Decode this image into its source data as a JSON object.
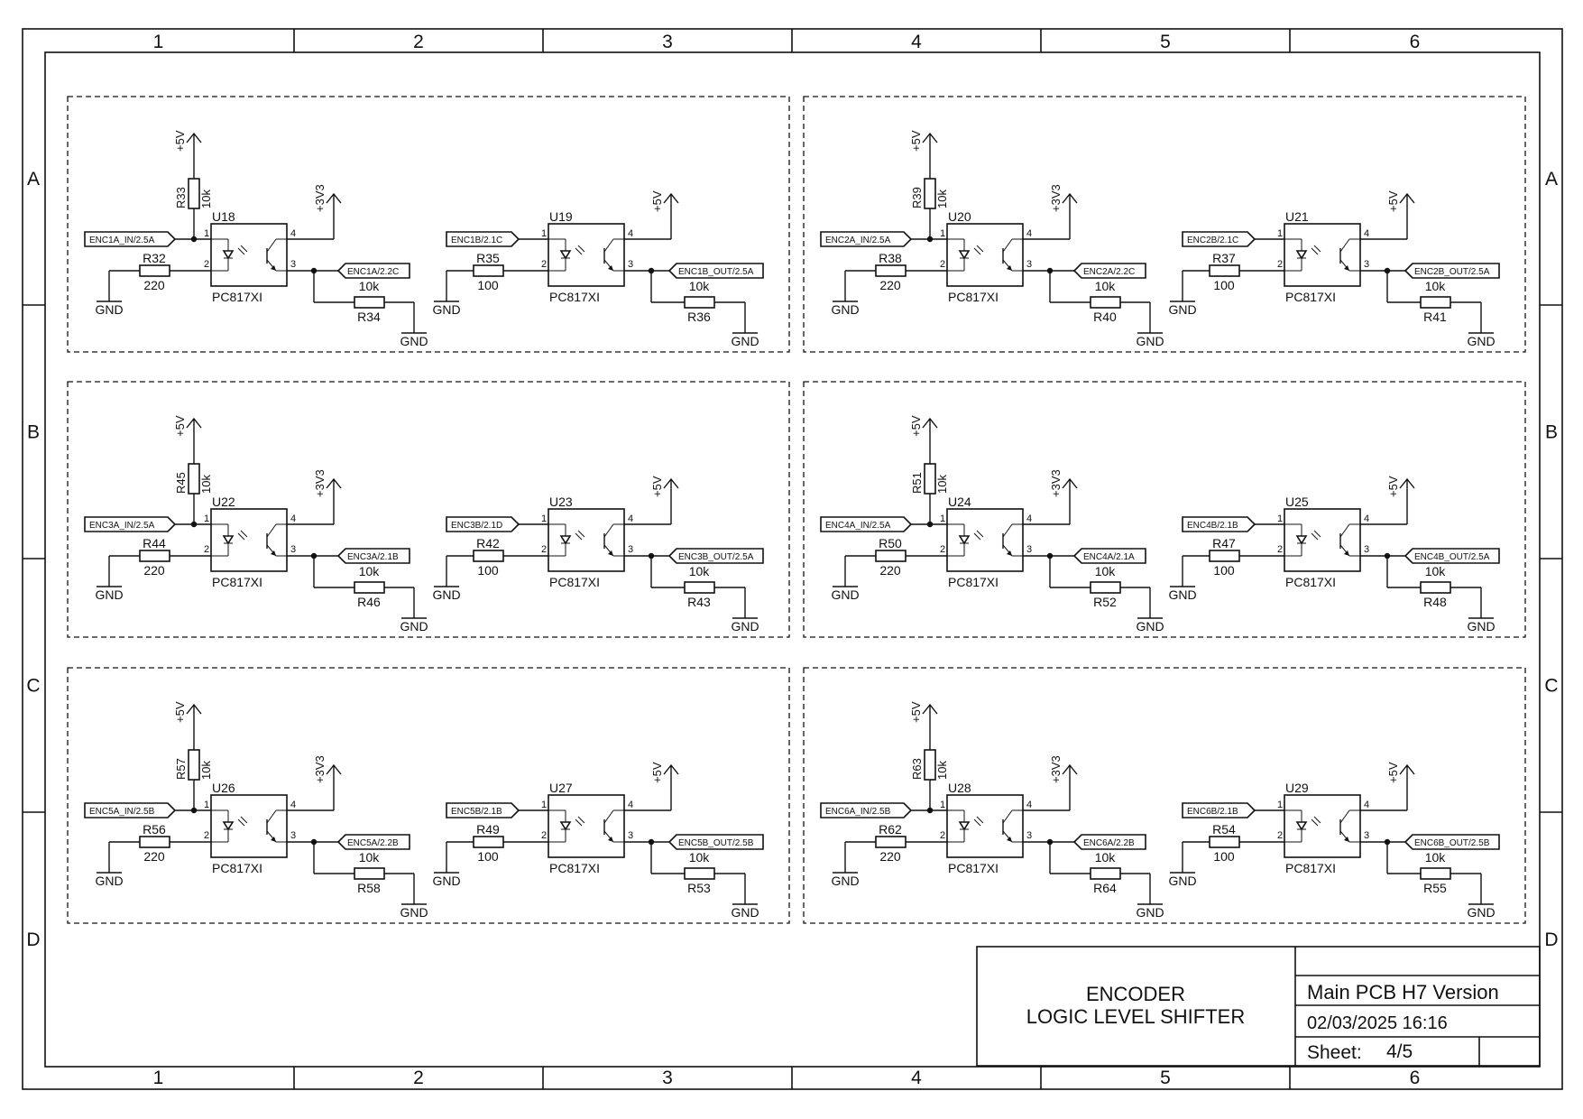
{
  "frame": {
    "columns": [
      "1",
      "2",
      "3",
      "4",
      "5",
      "6"
    ],
    "rows": [
      "A",
      "B",
      "C",
      "D"
    ]
  },
  "title_block": {
    "title_line1": "ENCODER",
    "title_line2": "LOGIC LEVEL SHIFTER",
    "project": "Main PCB H7 Version",
    "datetime": "02/03/2025 16:16",
    "sheet_label": "Sheet:",
    "sheet_value": "4/5"
  },
  "blocks": [
    {
      "in_a": {
        "vcc": "+5V",
        "r_top": "R33",
        "r_top_val": "10k",
        "label_in": "ENC1A_IN/2.5A",
        "u": "U18",
        "part": "PC817XI",
        "r_ser": "R32",
        "r_ser_val": "220",
        "gnd_l": "GND",
        "vout": "+3V3",
        "label_out": "ENC1A/2.2C",
        "r_pd": "R34",
        "r_pd_val": "10k",
        "gnd_r": "GND"
      },
      "in_b": {
        "label_in": "ENC1B/2.1C",
        "u": "U19",
        "part": "PC817XI",
        "r_ser": "R35",
        "r_ser_val": "100",
        "gnd_l": "GND",
        "vout": "+5V",
        "label_out": "ENC1B_OUT/2.5A",
        "r_pd": "R36",
        "r_pd_val": "10k",
        "gnd_r": "GND"
      }
    },
    {
      "in_a": {
        "vcc": "+5V",
        "r_top": "R39",
        "r_top_val": "10k",
        "label_in": "ENC2A_IN/2.5A",
        "u": "U20",
        "part": "PC817XI",
        "r_ser": "R38",
        "r_ser_val": "220",
        "gnd_l": "GND",
        "vout": "+3V3",
        "label_out": "ENC2A/2.2C",
        "r_pd": "R40",
        "r_pd_val": "10k",
        "gnd_r": "GND"
      },
      "in_b": {
        "label_in": "ENC2B/2.1C",
        "u": "U21",
        "part": "PC817XI",
        "r_ser": "R37",
        "r_ser_val": "100",
        "gnd_l": "GND",
        "vout": "+5V",
        "label_out": "ENC2B_OUT/2.5A",
        "r_pd": "R41",
        "r_pd_val": "10k",
        "gnd_r": "GND"
      }
    },
    {
      "in_a": {
        "vcc": "+5V",
        "r_top": "R45",
        "r_top_val": "10k",
        "label_in": "ENC3A_IN/2.5A",
        "u": "U22",
        "part": "PC817XI",
        "r_ser": "R44",
        "r_ser_val": "220",
        "gnd_l": "GND",
        "vout": "+3V3",
        "label_out": "ENC3A/2.1B",
        "r_pd": "R46",
        "r_pd_val": "10k",
        "gnd_r": "GND"
      },
      "in_b": {
        "label_in": "ENC3B/2.1D",
        "u": "U23",
        "part": "PC817XI",
        "r_ser": "R42",
        "r_ser_val": "100",
        "gnd_l": "GND",
        "vout": "+5V",
        "label_out": "ENC3B_OUT/2.5A",
        "r_pd": "R43",
        "r_pd_val": "10k",
        "gnd_r": "GND"
      }
    },
    {
      "in_a": {
        "vcc": "+5V",
        "r_top": "R51",
        "r_top_val": "10k",
        "label_in": "ENC4A_IN/2.5A",
        "u": "U24",
        "part": "PC817XI",
        "r_ser": "R50",
        "r_ser_val": "220",
        "gnd_l": "GND",
        "vout": "+3V3",
        "label_out": "ENC4A/2.1A",
        "r_pd": "R52",
        "r_pd_val": "10k",
        "gnd_r": "GND"
      },
      "in_b": {
        "label_in": "ENC4B/2.1B",
        "u": "U25",
        "part": "PC817XI",
        "r_ser": "R47",
        "r_ser_val": "100",
        "gnd_l": "GND",
        "vout": "+5V",
        "label_out": "ENC4B_OUT/2.5A",
        "r_pd": "R48",
        "r_pd_val": "10k",
        "gnd_r": "GND"
      }
    },
    {
      "in_a": {
        "vcc": "+5V",
        "r_top": "R57",
        "r_top_val": "10k",
        "label_in": "ENC5A_IN/2.5B",
        "u": "U26",
        "part": "PC817XI",
        "r_ser": "R56",
        "r_ser_val": "220",
        "gnd_l": "GND",
        "vout": "+3V3",
        "label_out": "ENC5A/2.2B",
        "r_pd": "R58",
        "r_pd_val": "10k",
        "gnd_r": "GND"
      },
      "in_b": {
        "label_in": "ENC5B/2.1B",
        "u": "U27",
        "part": "PC817XI",
        "r_ser": "R49",
        "r_ser_val": "100",
        "gnd_l": "GND",
        "vout": "+5V",
        "label_out": "ENC5B_OUT/2.5B",
        "r_pd": "R53",
        "r_pd_val": "10k",
        "gnd_r": "GND"
      }
    },
    {
      "in_a": {
        "vcc": "+5V",
        "r_top": "R63",
        "r_top_val": "10k",
        "label_in": "ENC6A_IN/2.5B",
        "u": "U28",
        "part": "PC817XI",
        "r_ser": "R62",
        "r_ser_val": "220",
        "gnd_l": "GND",
        "vout": "+3V3",
        "label_out": "ENC6A/2.2B",
        "r_pd": "R64",
        "r_pd_val": "10k",
        "gnd_r": "GND"
      },
      "in_b": {
        "label_in": "ENC6B/2.1B",
        "u": "U29",
        "part": "PC817XI",
        "r_ser": "R54",
        "r_ser_val": "100",
        "gnd_l": "GND",
        "vout": "+5V",
        "label_out": "ENC6B_OUT/2.5B",
        "r_pd": "R55",
        "r_pd_val": "10k",
        "gnd_r": "GND"
      }
    }
  ]
}
